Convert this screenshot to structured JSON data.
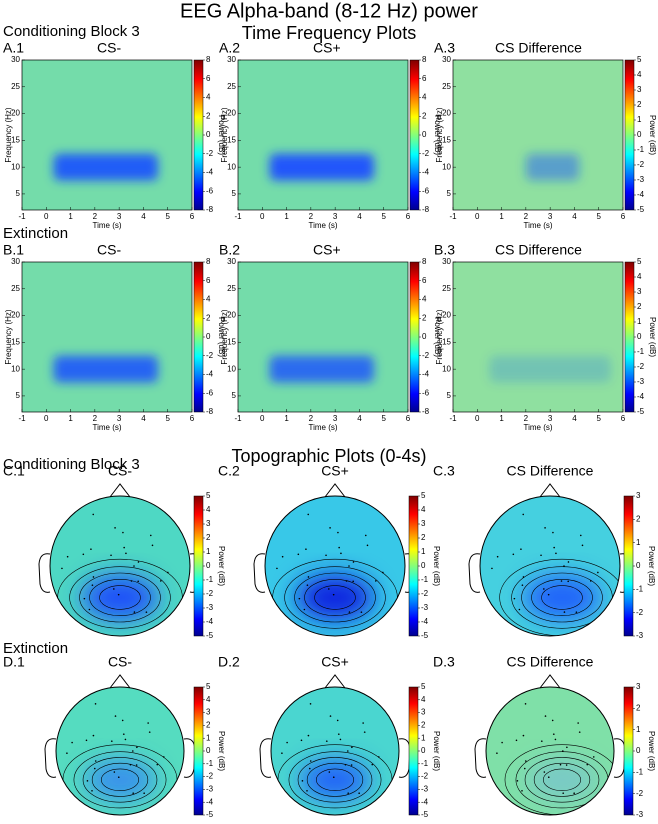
{
  "title": "EEG Alpha-band (8-12 Hz) power",
  "tf_heading": "Time Frequency Plots",
  "topo_heading": "Topographic Plots (0-4s)",
  "cbar_label": "Power (dB)",
  "tf_axes": {
    "xlabel": "Time (s)",
    "ylabel": "Frequency (Hz)",
    "xlim": [
      -1,
      6
    ],
    "xticks": [
      -1,
      0,
      1,
      2,
      3,
      4,
      5,
      6
    ],
    "ylim": [
      2,
      30
    ],
    "yticks": [
      5,
      10,
      15,
      20,
      25,
      30
    ]
  },
  "tf_rows": [
    {
      "label": "Conditioning Block 3",
      "panels": [
        {
          "id": "A.1",
          "title": "CS-",
          "clim": [
            -8,
            8
          ],
          "cticks": [
            -8,
            -6,
            -4,
            -2,
            0,
            2,
            4,
            6,
            8
          ]
        },
        {
          "id": "A.2",
          "title": "CS+",
          "clim": [
            -8,
            8
          ],
          "cticks": [
            -8,
            -6,
            -4,
            -2,
            0,
            2,
            4,
            6,
            8
          ]
        },
        {
          "id": "A.3",
          "title": "CS Difference",
          "clim": [
            -5,
            5
          ],
          "cticks": [
            -5,
            -4,
            -3,
            -2,
            -1,
            0,
            1,
            2,
            3,
            4,
            5
          ]
        }
      ]
    },
    {
      "label": "Extinction",
      "panels": [
        {
          "id": "B.1",
          "title": "CS-",
          "clim": [
            -8,
            8
          ],
          "cticks": [
            -8,
            -6,
            -4,
            -2,
            0,
            2,
            4,
            6,
            8
          ]
        },
        {
          "id": "B.2",
          "title": "CS+",
          "clim": [
            -8,
            8
          ],
          "cticks": [
            -8,
            -6,
            -4,
            -2,
            0,
            2,
            4,
            6,
            8
          ]
        },
        {
          "id": "B.3",
          "title": "CS Difference",
          "clim": [
            -5,
            5
          ],
          "cticks": [
            -5,
            -4,
            -3,
            -2,
            -1,
            0,
            1,
            2,
            3,
            4,
            5
          ]
        }
      ]
    }
  ],
  "topo_rows": [
    {
      "label": "Conditioning Block 3",
      "panels": [
        {
          "id": "C.1",
          "title": "CS-",
          "clim": [
            -5,
            5
          ],
          "cticks": [
            -5,
            -4,
            -3,
            -2,
            -1,
            0,
            1,
            2,
            3,
            4,
            5
          ]
        },
        {
          "id": "C.2",
          "title": "CS+",
          "clim": [
            -5,
            5
          ],
          "cticks": [
            -5,
            -4,
            -3,
            -2,
            -1,
            0,
            1,
            2,
            3,
            4,
            5
          ]
        },
        {
          "id": "C.3",
          "title": "CS Difference",
          "clim": [
            -3,
            3
          ],
          "cticks": [
            -3,
            -2,
            -1,
            0,
            1,
            2,
            3
          ]
        }
      ]
    },
    {
      "label": "Extinction",
      "panels": [
        {
          "id": "D.1",
          "title": "CS-",
          "clim": [
            -5,
            5
          ],
          "cticks": [
            -5,
            -4,
            -3,
            -2,
            -1,
            0,
            1,
            2,
            3,
            4,
            5
          ]
        },
        {
          "id": "D.2",
          "title": "CS+",
          "clim": [
            -5,
            5
          ],
          "cticks": [
            -5,
            -4,
            -3,
            -2,
            -1,
            0,
            1,
            2,
            3,
            4,
            5
          ]
        },
        {
          "id": "D.3",
          "title": "CS Difference",
          "clim": [
            -3,
            3
          ],
          "cticks": [
            -3,
            -2,
            -1,
            0,
            1,
            2,
            3
          ]
        }
      ]
    }
  ]
}
